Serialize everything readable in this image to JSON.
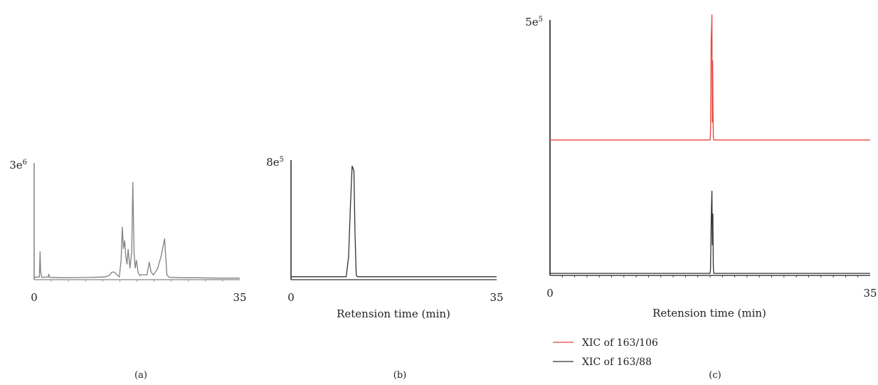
{
  "chart_data": [
    {
      "panel": "(a)",
      "type": "line",
      "xlim": [
        0,
        35
      ],
      "ylim": [
        0,
        3000000
      ],
      "x_tick_labels": [
        "0",
        "35"
      ],
      "y_max_label": {
        "base": "3e",
        "exp": "6"
      },
      "xlabel": "",
      "ylabel": "",
      "series": [
        {
          "color": "#808080",
          "x": [
            0,
            0.9,
            1.0,
            1.1,
            1.3,
            2.4,
            2.5,
            2.6,
            5,
            8,
            10,
            12,
            12.8,
            13.2,
            13.6,
            14.5,
            14.8,
            15.0,
            15.2,
            15.4,
            15.6,
            15.8,
            16.0,
            16.3,
            16.6,
            16.8,
            17.0,
            17.2,
            17.4,
            17.7,
            18.0,
            18.3,
            19.2,
            19.6,
            19.9,
            20.3,
            21.0,
            21.6,
            22.2,
            22.6,
            23,
            25,
            28,
            31,
            35
          ],
          "y": [
            60000,
            70000,
            720000,
            200000,
            60000,
            70000,
            140000,
            60000,
            50000,
            55000,
            60000,
            70000,
            110000,
            190000,
            200000,
            70000,
            500000,
            1350000,
            800000,
            1000000,
            600000,
            400000,
            780000,
            300000,
            700000,
            2500000,
            700000,
            300000,
            500000,
            180000,
            100000,
            130000,
            120000,
            450000,
            200000,
            120000,
            280000,
            600000,
            1050000,
            120000,
            60000,
            50000,
            50000,
            40000,
            40000
          ]
        }
      ]
    },
    {
      "panel": "(b)",
      "type": "line",
      "xlim": [
        0,
        35
      ],
      "ylim": [
        0,
        800000
      ],
      "x_tick_labels": [
        "0",
        "35"
      ],
      "y_max_label": {
        "base": "8e",
        "exp": "5"
      },
      "xlabel": "Retension time (min)",
      "ylabel": "",
      "series": [
        {
          "color": "#333333",
          "x": [
            0,
            9.4,
            9.8,
            10.1,
            10.4,
            10.7,
            10.9,
            11.1,
            11.3,
            35
          ],
          "y": [
            20000,
            20000,
            150000,
            480000,
            760000,
            730000,
            300000,
            30000,
            20000,
            20000
          ]
        }
      ]
    },
    {
      "panel": "(c)",
      "type": "line",
      "xlim": [
        0,
        35
      ],
      "ylim": [
        0,
        500000
      ],
      "x_tick_labels": [
        "0",
        "35"
      ],
      "y_max_label": {
        "base": "5e",
        "exp": "5"
      },
      "xlabel": "Retension time (min)",
      "ylabel": "",
      "series": [
        {
          "name": "XIC of 163/106",
          "color": "#e8453c",
          "x": [
            0,
            17.5,
            17.55,
            17.58,
            17.62,
            17.66,
            17.7,
            17.74,
            17.78,
            17.82,
            17.86,
            17.9,
            17.95,
            35
          ],
          "y": [
            265000,
            265000,
            280000,
            350000,
            460000,
            485000,
            510000,
            300000,
            420000,
            325000,
            270000,
            265000,
            265000,
            265000
          ]
        },
        {
          "name": "XIC of 163/88",
          "color": "#333333",
          "x": [
            0,
            17.5,
            17.55,
            17.6,
            17.65,
            17.7,
            17.75,
            17.8,
            17.85,
            17.9,
            35
          ],
          "y": [
            4000,
            4000,
            12000,
            80000,
            130000,
            165000,
            60000,
            120000,
            20000,
            4000,
            4000
          ]
        }
      ]
    }
  ]
}
